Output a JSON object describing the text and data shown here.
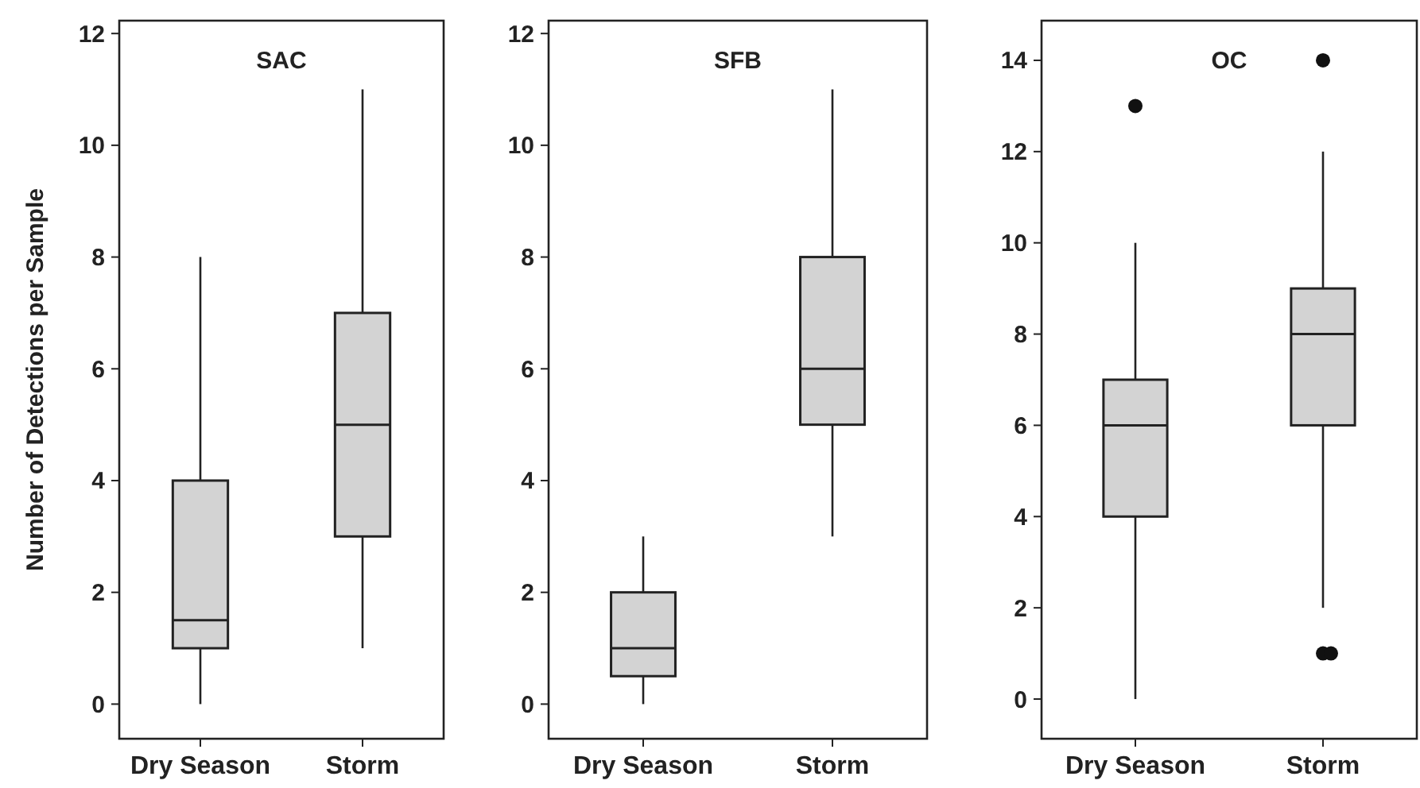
{
  "chart_data": [
    {
      "type": "box",
      "title": "SAC",
      "ylabel": "Number of Detections per Sample",
      "categories": [
        "Dry Season",
        "Storm"
      ],
      "ylim": [
        -0.62,
        12.23
      ],
      "yticks": [
        0,
        2,
        4,
        6,
        8,
        10,
        12
      ],
      "color": "#d3d3d3",
      "boxes": [
        {
          "low": 0,
          "q1": 1,
          "median": 1.5,
          "q3": 4,
          "high": 8
        },
        {
          "low": 1,
          "q1": 3,
          "median": 5,
          "q3": 7,
          "high": 11
        }
      ]
    },
    {
      "type": "box",
      "title": "SFB",
      "categories": [
        "Dry Season",
        "Storm"
      ],
      "ylim": [
        -0.62,
        12.23
      ],
      "yticks": [
        0,
        2,
        4,
        6,
        8,
        10,
        12
      ],
      "color": "#d3d3d3",
      "boxes": [
        {
          "low": 0,
          "q1": 0.5,
          "median": 1,
          "q3": 2,
          "high": 3
        },
        {
          "low": 3,
          "q1": 5,
          "median": 6,
          "q3": 8,
          "high": 11
        }
      ]
    },
    {
      "type": "box",
      "title": "OC",
      "categories": [
        "Dry Season",
        "Storm"
      ],
      "ylim": [
        -0.87,
        14.87
      ],
      "yticks": [
        0,
        2,
        4,
        6,
        8,
        10,
        12,
        14
      ],
      "color": "#d3d3d3",
      "boxes": [
        {
          "low": 0,
          "q1": 4,
          "median": 6,
          "q3": 7,
          "high": 10,
          "outliers": [
            13
          ]
        },
        {
          "low": 2,
          "q1": 6,
          "median": 8,
          "q3": 9,
          "high": 12,
          "outliers": [
            1,
            1,
            14
          ]
        }
      ]
    }
  ]
}
